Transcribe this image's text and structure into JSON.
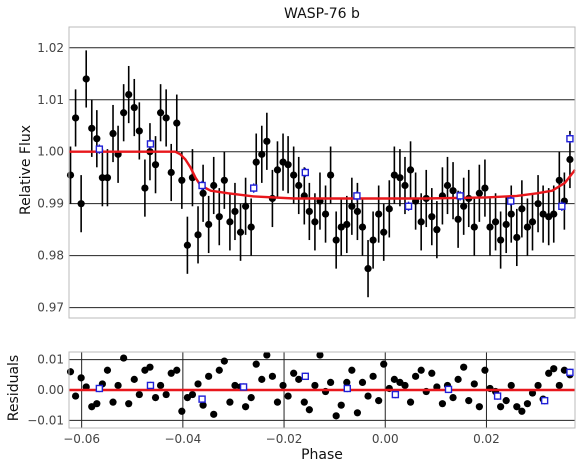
{
  "chart_data": [
    {
      "type": "scatter",
      "title": "WASP-76 b",
      "xlabel": "",
      "ylabel": "Relative Flux",
      "xlim": [
        -0.0625,
        0.0375
      ],
      "ylim": [
        0.968,
        1.024
      ],
      "xticks": [
        -0.06,
        -0.04,
        -0.02,
        0.0,
        0.02
      ],
      "xtick_labels": [
        "",
        "",
        "",
        "",
        ""
      ],
      "yticks": [
        0.97,
        0.98,
        0.99,
        1.0,
        1.01,
        1.02
      ],
      "ytick_labels": [
        "0.97",
        "0.98",
        "0.99",
        "1.00",
        "1.01",
        "1.02"
      ],
      "grid": "horizontal",
      "colors": {
        "data": "#000000",
        "model": "#e8171c",
        "binned": "#1f1fd6"
      },
      "series": [
        {
          "kind": "data",
          "x": [
            -0.0622,
            -0.0612,
            -0.0601,
            -0.0591,
            -0.058,
            -0.057,
            -0.0559,
            -0.0549,
            -0.0538,
            -0.0528,
            -0.0517,
            -0.0507,
            -0.0496,
            -0.0486,
            -0.0475,
            -0.0465,
            -0.0454,
            -0.0444,
            -0.0433,
            -0.0423,
            -0.0412,
            -0.0402,
            -0.0391,
            -0.0381,
            -0.037,
            -0.036,
            -0.0349,
            -0.0339,
            -0.0328,
            -0.0318,
            -0.0307,
            -0.0297,
            -0.0286,
            -0.0276,
            -0.0265,
            -0.0255,
            -0.0244,
            -0.0234,
            -0.0223,
            -0.0213,
            -0.0202,
            -0.0192,
            -0.0181,
            -0.0171,
            -0.016,
            -0.015,
            -0.0139,
            -0.0129,
            -0.0118,
            -0.0108,
            -0.0097,
            -0.0087,
            -0.0076,
            -0.0066,
            -0.0055,
            -0.0045,
            -0.0034,
            -0.0024,
            -0.0013,
            -0.0003,
            0.0008,
            0.0018,
            0.0029,
            0.0039,
            0.005,
            0.006,
            0.0071,
            0.0081,
            0.0092,
            0.0102,
            0.0113,
            0.0123,
            0.0134,
            0.0144,
            0.0155,
            0.0165,
            0.0176,
            0.0186,
            0.0197,
            0.0207,
            0.0218,
            0.0228,
            0.0239,
            0.0249,
            0.026,
            0.027,
            0.0281,
            0.0291,
            0.0302,
            0.0312,
            0.0323,
            0.0333,
            0.0344,
            0.0354,
            0.0365
          ],
          "y": [
            0.9955,
            1.0065,
            0.99,
            1.014,
            1.0045,
            1.0025,
            0.995,
            0.995,
            1.0035,
            0.9995,
            1.0075,
            1.011,
            1.0085,
            1.004,
            0.993,
            1.0,
            0.9975,
            1.0075,
            1.0065,
            0.996,
            1.0055,
            0.9945,
            0.982,
            0.995,
            0.984,
            0.992,
            0.986,
            0.9935,
            0.9875,
            0.9945,
            0.9865,
            0.9885,
            0.9845,
            0.9895,
            0.9855,
            0.998,
            0.9995,
            1.002,
            0.991,
            0.9965,
            0.998,
            0.9975,
            0.9955,
            0.9935,
            0.9915,
            0.9885,
            0.9865,
            0.9905,
            0.988,
            0.9955,
            0.983,
            0.9855,
            0.986,
            0.9895,
            0.9885,
            0.9855,
            0.9775,
            0.983,
            0.988,
            0.9845,
            0.989,
            0.9955,
            0.995,
            0.9935,
            0.9965,
            0.9905,
            0.9865,
            0.991,
            0.9875,
            0.985,
            0.9915,
            0.9935,
            0.9925,
            0.987,
            0.9895,
            0.991,
            0.9855,
            0.992,
            0.993,
            0.9855,
            0.9865,
            0.983,
            0.986,
            0.988,
            0.9835,
            0.989,
            0.9855,
            0.9865,
            0.99,
            0.988,
            0.9875,
            0.988,
            0.9945,
            0.9905,
            0.9985
          ],
          "yerr": 0.0055
        },
        {
          "kind": "binned",
          "x": [
            -0.0565,
            -0.0464,
            -0.0362,
            -0.026,
            -0.0158,
            -0.0056,
            0.0046,
            0.0148,
            0.0248,
            0.0349,
            0.0365
          ],
          "y": [
            1.0005,
            1.0015,
            0.9935,
            0.993,
            0.996,
            0.9915,
            0.9895,
            0.9915,
            0.9905,
            0.9895,
            1.0025
          ],
          "yerr": 0.0009
        },
        {
          "kind": "model",
          "x": [
            -0.0625,
            -0.0415,
            -0.0405,
            -0.0395,
            -0.0385,
            -0.0375,
            -0.0365,
            -0.0345,
            -0.031,
            -0.026,
            -0.018,
            -0.005,
            0.008,
            0.02,
            0.026,
            0.03,
            0.033,
            0.0355,
            0.0375
          ],
          "y": [
            1.0,
            1.0,
            0.9995,
            0.9985,
            0.997,
            0.995,
            0.9935,
            0.9925,
            0.992,
            0.9914,
            0.991,
            0.991,
            0.991,
            0.9912,
            0.9915,
            0.992,
            0.9925,
            0.994,
            0.9965
          ]
        }
      ]
    },
    {
      "type": "scatter",
      "title": "",
      "xlabel": "Phase",
      "ylabel": "Residuals",
      "xlim": [
        -0.0625,
        0.0375
      ],
      "ylim": [
        -0.0125,
        0.0125
      ],
      "xticks": [
        -0.06,
        -0.04,
        -0.02,
        0.0,
        0.02
      ],
      "xtick_labels": [
        "−0.06",
        "−0.04",
        "−0.02",
        "0.00",
        "0.02"
      ],
      "yticks": [
        -0.01,
        0.0,
        0.01
      ],
      "ytick_labels": [
        "−0.01",
        "0.00",
        "0.01"
      ],
      "grid": "both",
      "colors": {
        "data": "#000000",
        "model": "#e8171c",
        "binned": "#1f1fd6"
      },
      "series": [
        {
          "kind": "data",
          "x": [
            -0.0622,
            -0.0612,
            -0.0601,
            -0.0591,
            -0.058,
            -0.057,
            -0.0559,
            -0.0549,
            -0.0538,
            -0.0528,
            -0.0517,
            -0.0507,
            -0.0496,
            -0.0486,
            -0.0475,
            -0.0465,
            -0.0454,
            -0.0444,
            -0.0433,
            -0.0423,
            -0.0412,
            -0.0402,
            -0.0391,
            -0.0381,
            -0.037,
            -0.036,
            -0.0349,
            -0.0339,
            -0.0328,
            -0.0318,
            -0.0307,
            -0.0297,
            -0.0286,
            -0.0276,
            -0.0265,
            -0.0255,
            -0.0244,
            -0.0234,
            -0.0223,
            -0.0213,
            -0.0202,
            -0.0192,
            -0.0181,
            -0.0171,
            -0.016,
            -0.015,
            -0.0139,
            -0.0129,
            -0.0118,
            -0.0108,
            -0.0097,
            -0.0087,
            -0.0076,
            -0.0066,
            -0.0055,
            -0.0045,
            -0.0034,
            -0.0024,
            -0.0013,
            -0.0003,
            0.0008,
            0.0018,
            0.0029,
            0.0039,
            0.005,
            0.006,
            0.0071,
            0.0081,
            0.0092,
            0.0102,
            0.0113,
            0.0123,
            0.0134,
            0.0144,
            0.0155,
            0.0165,
            0.0176,
            0.0186,
            0.0197,
            0.0207,
            0.0218,
            0.0228,
            0.0239,
            0.0249,
            0.026,
            0.027,
            0.0281,
            0.0291,
            0.0302,
            0.0312,
            0.0323,
            0.0333,
            0.0344,
            0.0354,
            0.0365
          ],
          "y": [
            0.006,
            -0.002,
            0.004,
            0.001,
            -0.0055,
            -0.0045,
            0.002,
            0.0065,
            -0.004,
            0.0015,
            0.0105,
            -0.0045,
            0.0035,
            -0.0015,
            0.0065,
            0.0075,
            -0.0025,
            0.0015,
            -0.0015,
            0.0055,
            0.0065,
            -0.007,
            -0.0025,
            -0.0015,
            0.002,
            -0.005,
            0.0045,
            -0.008,
            0.0065,
            0.0095,
            -0.004,
            0.0015,
            0.001,
            -0.0055,
            -0.0025,
            0.0085,
            0.0035,
            0.0115,
            0.0045,
            -0.004,
            0.0015,
            -0.002,
            0.0055,
            0.0035,
            -0.004,
            -0.0065,
            0.0015,
            0.0115,
            -0.0005,
            0.0025,
            -0.0085,
            -0.005,
            0.0025,
            0.0065,
            -0.0075,
            0.0025,
            -0.002,
            0.0045,
            -0.0035,
            0.0085,
            0.0005,
            0.0035,
            0.0025,
            0.0015,
            -0.004,
            0.0045,
            0.0065,
            -0.0005,
            0.0055,
            0.001,
            -0.0045,
            0.0015,
            -0.0025,
            0.0035,
            0.0075,
            -0.0035,
            0.002,
            -0.0055,
            0.0065,
            0.0005,
            -0.0005,
            -0.0055,
            -0.0035,
            0.0015,
            -0.0055,
            -0.007,
            -0.0045,
            -0.001,
            0.0015,
            -0.003,
            0.0055,
            0.007,
            0.0015,
            0.0065,
            0.005
          ],
          "yerr": 0
        },
        {
          "kind": "binned",
          "x": [
            -0.0565,
            -0.0464,
            -0.0362,
            -0.028,
            -0.0158,
            -0.0075,
            0.002,
            0.0125,
            0.0222,
            0.0315,
            0.0365
          ],
          "y": [
            0.0005,
            0.0015,
            -0.003,
            0.001,
            0.0045,
            0.0005,
            -0.0015,
            0.0002,
            -0.002,
            -0.0035,
            0.0058
          ],
          "yerr": 0.0012
        },
        {
          "kind": "model",
          "x": [
            -0.0625,
            0.0375
          ],
          "y": [
            0.0,
            0.0
          ]
        }
      ]
    }
  ]
}
